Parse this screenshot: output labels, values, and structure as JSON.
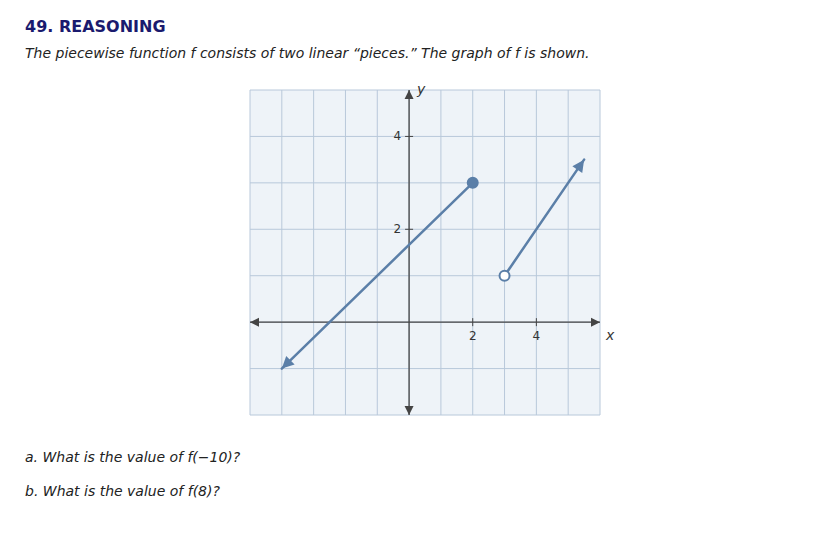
{
  "chart_data": {
    "type": "line",
    "title": "49. REASONING",
    "subtitle": "The piecewise function f consists of two linear “pieces.” The graph of f is shown.",
    "annotations": [
      "a. What is the value of f(−10)?",
      "b. What is the value of f(8)?"
    ],
    "xlabel": "x",
    "ylabel": "y",
    "xlim": [
      -5,
      6
    ],
    "ylim": [
      -2,
      5
    ],
    "xticks": [
      2,
      4
    ],
    "yticks": [
      2,
      4
    ],
    "grid": true,
    "series": [
      {
        "color": "#5b7fa8",
        "x": [
          -4.0,
          2.0
        ],
        "values": [
          -1.0,
          3.0
        ],
        "line_style": "arrow-start",
        "marker": "closed"
      },
      {
        "color": "#5b7fa8",
        "x": [
          3.0,
          5.5
        ],
        "values": [
          1.0,
          3.5
        ],
        "line_style": "arrow-end",
        "marker": "open"
      }
    ]
  }
}
